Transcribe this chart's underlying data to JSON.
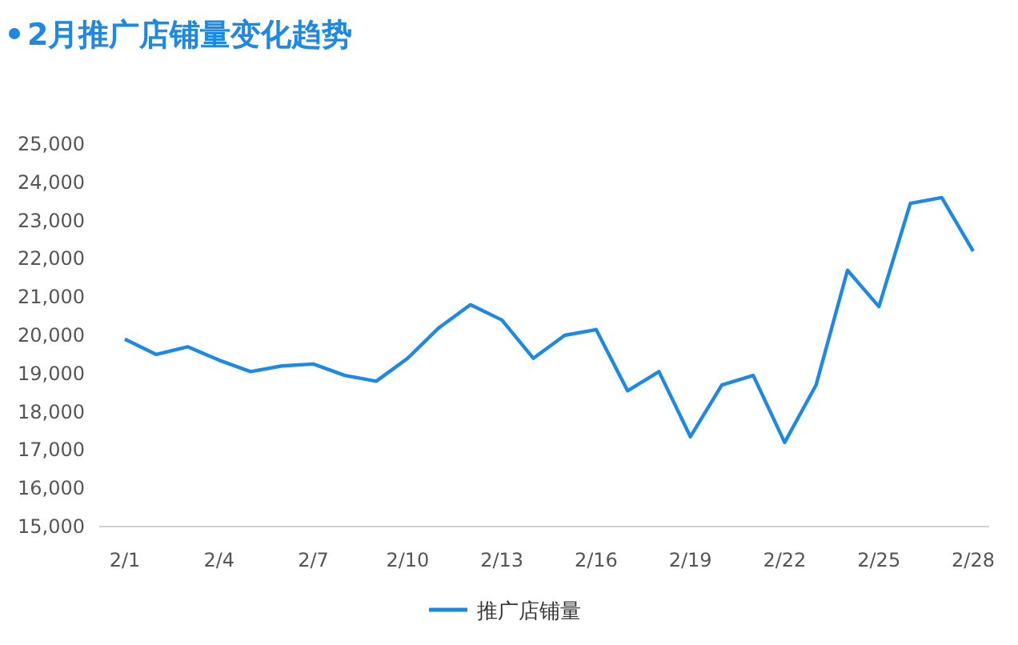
{
  "chart_data": {
    "type": "line",
    "title": "2月推广店铺量变化趋势",
    "categories": [
      "2/1",
      null,
      null,
      "2/4",
      null,
      null,
      "2/7",
      null,
      null,
      "2/10",
      null,
      null,
      "2/13",
      null,
      null,
      "2/16",
      null,
      null,
      "2/19",
      null,
      null,
      "2/22",
      null,
      null,
      "2/25",
      null,
      null,
      "2/28"
    ],
    "series": [
      {
        "name": "推广店铺量",
        "color": "#1e88e5",
        "values": [
          19900,
          19500,
          19700,
          19350,
          19050,
          19200,
          19250,
          18950,
          18800,
          19400,
          20200,
          20800,
          20400,
          19400,
          20000,
          20150,
          18550,
          19050,
          17350,
          18700,
          18950,
          17200,
          18700,
          21700,
          20750,
          23450,
          23600,
          22200
        ]
      }
    ],
    "ylim": [
      15000,
      25000
    ],
    "yticks": [
      {
        "value": 15000,
        "label": "15,000"
      },
      {
        "value": 16000,
        "label": "16,000"
      },
      {
        "value": 17000,
        "label": "17,000"
      },
      {
        "value": 18000,
        "label": "18,000"
      },
      {
        "value": 19000,
        "label": "19,000"
      },
      {
        "value": 20000,
        "label": "20,000"
      },
      {
        "value": 21000,
        "label": "21,000"
      },
      {
        "value": 22000,
        "label": "22,000"
      },
      {
        "value": 23000,
        "label": "23,000"
      },
      {
        "value": 24000,
        "label": "24,000"
      },
      {
        "value": 25000,
        "label": "25,000"
      }
    ],
    "legend": "bottom",
    "marker": "none",
    "line_style": "solid"
  }
}
